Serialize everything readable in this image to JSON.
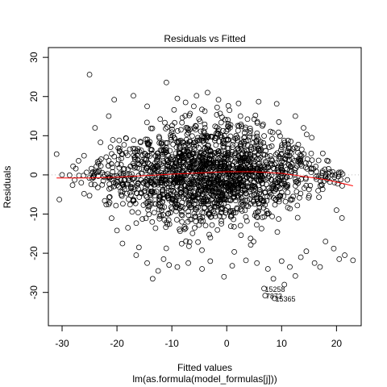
{
  "chart_data": {
    "type": "scatter",
    "title": "Residuals vs Fitted",
    "xlabel": "Fitted values",
    "xlabel_sub": "lm(as.formula(model_formulas[j]))",
    "ylabel": "Residuals",
    "xlim": [
      -32.5,
      24.5
    ],
    "ylim": [
      -38.5,
      32.5
    ],
    "xticks": [
      -30,
      -20,
      -10,
      0,
      10,
      20
    ],
    "yticks": [
      -30,
      -20,
      -10,
      0,
      10,
      20,
      30
    ],
    "grid": false,
    "reference_line": {
      "y": 0,
      "style": "dotted",
      "color": "#bfbfbf"
    },
    "smooth_line": {
      "color": "#ff0000",
      "x": [
        -31,
        -25,
        -20,
        -15,
        -10,
        -5,
        0,
        5,
        10,
        15,
        18,
        20,
        23
      ],
      "y": [
        -0.8,
        -0.8,
        -0.6,
        -0.2,
        0.2,
        0.5,
        0.8,
        0.8,
        0.4,
        -0.6,
        -1.2,
        -1.8,
        -2.8
      ]
    },
    "marker": "open-circle",
    "labeled_points": [
      {
        "label": "15258",
        "x": 6.8,
        "y": -29.0
      },
      {
        "label": "7873",
        "x": 7.0,
        "y": -30.8
      },
      {
        "label": "15365",
        "x": 8.7,
        "y": -31.5
      }
    ],
    "points": [
      [
        -31,
        5.3
      ],
      [
        -30.5,
        -6.3
      ],
      [
        -30,
        0
      ],
      [
        -28,
        2.2
      ],
      [
        -27.5,
        1.6
      ],
      [
        -27,
        3.6
      ],
      [
        -26,
        4.9
      ],
      [
        -26,
        -4.8
      ],
      [
        -25,
        25.6
      ],
      [
        -25,
        -5.3
      ],
      [
        -24.5,
        0.4
      ],
      [
        -24,
        12.0
      ],
      [
        -23.5,
        -3.2
      ],
      [
        -23,
        8.3
      ],
      [
        -22.5,
        -1.5
      ],
      [
        -21.5,
        15.0
      ],
      [
        -21.5,
        -7.5
      ],
      [
        -20.5,
        19.2
      ],
      [
        -20,
        -14.2
      ],
      [
        -19,
        -17.5
      ],
      [
        -18,
        -13.5
      ],
      [
        -17,
        20.2
      ],
      [
        -16.5,
        -20.5
      ],
      [
        -16,
        -18.5
      ],
      [
        -14.5,
        17.5
      ],
      [
        -14.5,
        -22.5
      ],
      [
        -13.5,
        -26.5
      ],
      [
        -12.5,
        -24.5
      ],
      [
        -11.5,
        -21.5
      ],
      [
        -11,
        23.6
      ],
      [
        -10.5,
        -23.0
      ],
      [
        -9,
        19.5
      ],
      [
        -9,
        -23.5
      ],
      [
        -7.5,
        18.5
      ],
      [
        -7,
        -22.5
      ],
      [
        -6,
        17.5
      ],
      [
        -5.5,
        20.2
      ],
      [
        -4.5,
        -24.0
      ],
      [
        -3.5,
        21.0
      ],
      [
        -3,
        -22.0
      ],
      [
        -1.5,
        19.2
      ],
      [
        -0.5,
        -26.0
      ],
      [
        0.5,
        16.5
      ],
      [
        1,
        -23.2
      ],
      [
        2.5,
        15.0
      ],
      [
        3.5,
        -21.8
      ],
      [
        5,
        14.2
      ],
      [
        5.5,
        -22.5
      ],
      [
        6.5,
        12.5
      ],
      [
        7.5,
        -24.0
      ],
      [
        8.5,
        -26.5
      ],
      [
        9.5,
        13.5
      ],
      [
        10,
        -22.0
      ],
      [
        10.5,
        -28.0
      ],
      [
        11.5,
        -23.5
      ],
      [
        12.5,
        15.0
      ],
      [
        12.5,
        -25.8
      ],
      [
        13.5,
        -21.0
      ],
      [
        14,
        12.0
      ],
      [
        14.5,
        -19.5
      ],
      [
        15.5,
        9.5
      ],
      [
        16,
        -22.5
      ],
      [
        17,
        -23.5
      ],
      [
        17.5,
        5.5
      ],
      [
        18,
        -17.0
      ],
      [
        18.5,
        3.5
      ],
      [
        19.5,
        -18.8
      ],
      [
        20,
        -9.0
      ],
      [
        20.5,
        -21.5
      ],
      [
        21,
        -11.0
      ],
      [
        21.5,
        -20.5
      ],
      [
        23,
        -21.8
      ]
    ]
  }
}
